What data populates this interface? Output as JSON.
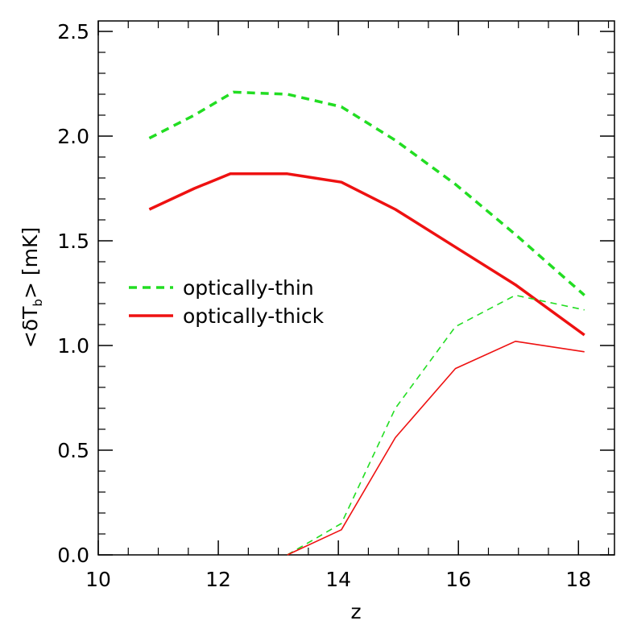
{
  "chart_data": {
    "type": "line",
    "title": "",
    "xlabel": "z",
    "ylabel_parts": {
      "open": "<δT",
      "sub": "b",
      "close": "> [mK]"
    },
    "xlim": [
      10,
      18.6
    ],
    "ylim": [
      0.0,
      2.55
    ],
    "xticks": [
      10,
      12,
      14,
      16,
      18
    ],
    "xtick_labels": [
      "10",
      "12",
      "14",
      "16",
      "18"
    ],
    "yticks": [
      0.0,
      0.5,
      1.0,
      1.5,
      2.0,
      2.5
    ],
    "ytick_labels": [
      "0.0",
      "0.5",
      "1.0",
      "1.5",
      "2.0",
      "2.5"
    ],
    "grid": false,
    "legend_position": "center-left",
    "series": [
      {
        "name": "optically-thin",
        "legend": true,
        "color": "#22dd22",
        "style": "dashed",
        "weight": "thick",
        "x": [
          10.85,
          11.6,
          12.25,
          13.15,
          14.05,
          14.95,
          15.95,
          16.95,
          18.1
        ],
        "y": [
          1.99,
          2.1,
          2.21,
          2.2,
          2.14,
          1.98,
          1.77,
          1.53,
          1.24
        ]
      },
      {
        "name": "optically-thick",
        "legend": true,
        "color": "#ee1111",
        "style": "solid",
        "weight": "thick",
        "x": [
          10.85,
          11.6,
          12.2,
          13.15,
          14.05,
          14.95,
          15.95,
          16.95,
          18.1
        ],
        "y": [
          1.65,
          1.75,
          1.82,
          1.82,
          1.78,
          1.65,
          1.47,
          1.29,
          1.05
        ]
      },
      {
        "legend": false,
        "color": "#22dd22",
        "style": "dashed",
        "weight": "thin",
        "x": [
          13.15,
          14.05,
          14.95,
          15.95,
          16.95,
          18.1
        ],
        "y": [
          0.0,
          0.15,
          0.7,
          1.09,
          1.24,
          1.17
        ]
      },
      {
        "legend": false,
        "color": "#ee1111",
        "style": "solid",
        "weight": "thin",
        "x": [
          13.15,
          14.05,
          14.95,
          15.95,
          16.95,
          18.1
        ],
        "y": [
          0.0,
          0.12,
          0.56,
          0.89,
          1.02,
          0.97
        ]
      }
    ]
  }
}
